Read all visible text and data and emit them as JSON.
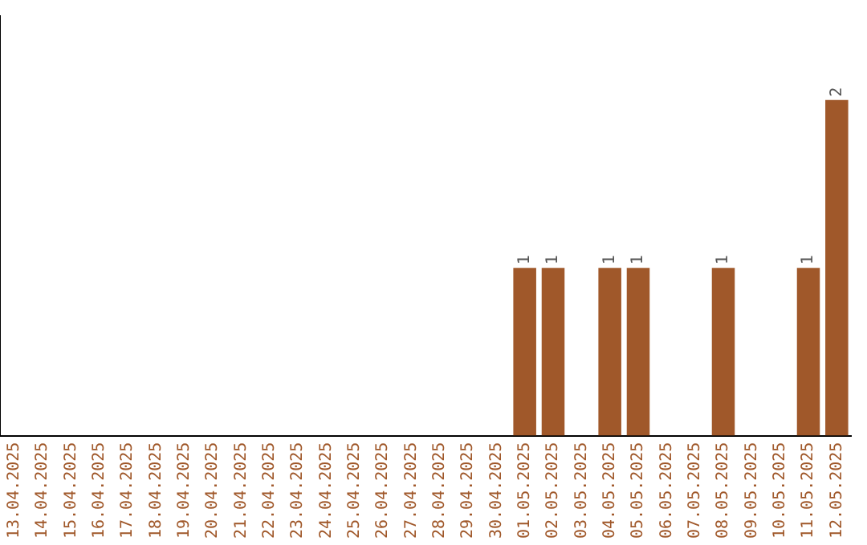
{
  "chart_data": {
    "type": "bar",
    "categories": [
      "13.04.2025",
      "14.04.2025",
      "15.04.2025",
      "16.04.2025",
      "17.04.2025",
      "18.04.2025",
      "19.04.2025",
      "20.04.2025",
      "21.04.2025",
      "22.04.2025",
      "23.04.2025",
      "24.04.2025",
      "25.04.2025",
      "26.04.2025",
      "27.04.2025",
      "28.04.2025",
      "29.04.2025",
      "30.04.2025",
      "01.05.2025",
      "02.05.2025",
      "03.05.2025",
      "04.05.2025",
      "05.05.2025",
      "06.05.2025",
      "07.05.2025",
      "08.05.2025",
      "09.05.2025",
      "10.05.2025",
      "11.05.2025",
      "12.05.2025"
    ],
    "values": [
      null,
      null,
      null,
      null,
      null,
      null,
      null,
      null,
      null,
      null,
      null,
      null,
      null,
      null,
      null,
      null,
      null,
      null,
      1,
      1,
      null,
      1,
      1,
      null,
      null,
      1,
      null,
      null,
      1,
      2
    ],
    "data_labels": true,
    "color": "#a0582a",
    "tick_labels": "x"
  }
}
